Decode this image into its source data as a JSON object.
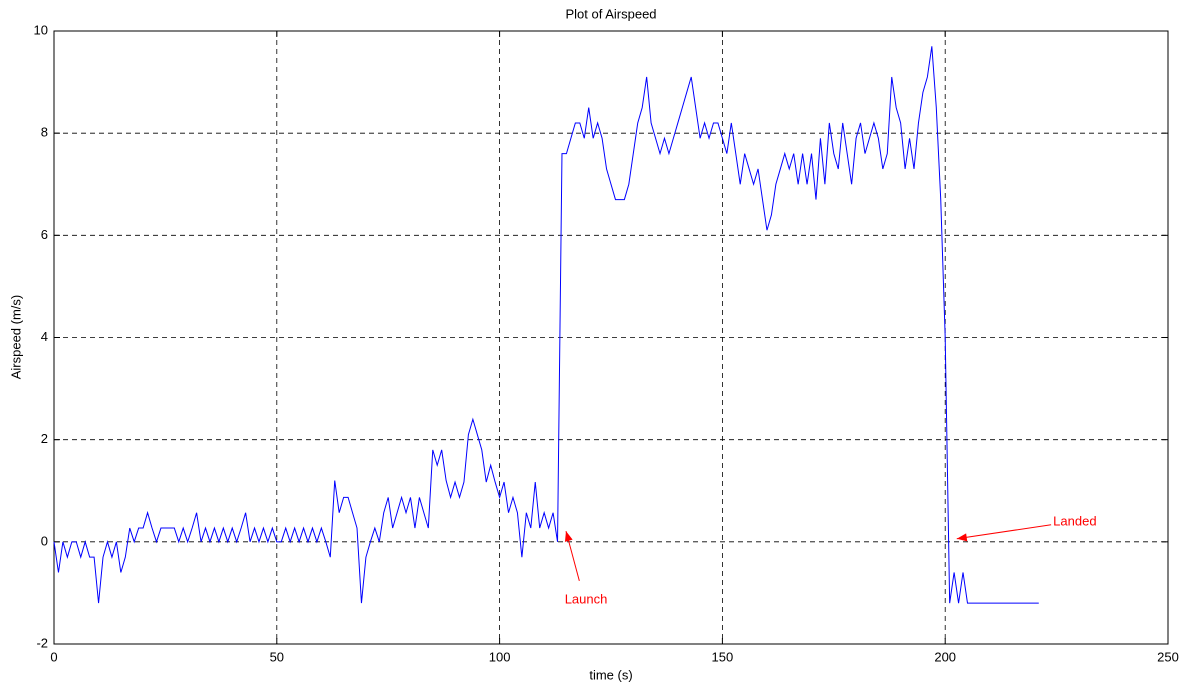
{
  "chart_data": {
    "type": "line",
    "title": "Plot of Airspeed",
    "x_label": "time (s)",
    "y_label": "Airspeed (m/s)",
    "x": [
      0,
      1,
      2,
      3,
      4,
      5,
      6,
      7,
      8,
      9,
      10,
      11,
      12,
      13,
      14,
      15,
      16,
      17,
      18,
      19,
      20,
      21,
      22,
      23,
      24,
      25,
      26,
      27,
      28,
      29,
      30,
      31,
      32,
      33,
      34,
      35,
      36,
      37,
      38,
      39,
      40,
      41,
      42,
      43,
      44,
      45,
      46,
      47,
      48,
      49,
      50,
      51,
      52,
      53,
      54,
      55,
      56,
      57,
      58,
      59,
      60,
      61,
      62,
      63,
      64,
      65,
      66,
      67,
      68,
      69,
      70,
      71,
      72,
      73,
      74,
      75,
      76,
      77,
      78,
      79,
      80,
      81,
      82,
      83,
      84,
      85,
      86,
      87,
      88,
      89,
      90,
      91,
      92,
      93,
      94,
      95,
      96,
      97,
      98,
      99,
      100,
      101,
      102,
      103,
      104,
      105,
      106,
      107,
      108,
      109,
      110,
      111,
      112,
      113,
      114,
      115,
      116,
      117,
      118,
      119,
      120,
      121,
      122,
      123,
      124,
      125,
      126,
      127,
      128,
      129,
      130,
      131,
      132,
      133,
      134,
      135,
      136,
      137,
      138,
      139,
      140,
      141,
      142,
      143,
      144,
      145,
      146,
      147,
      148,
      149,
      150,
      151,
      152,
      153,
      154,
      155,
      156,
      157,
      158,
      159,
      160,
      161,
      162,
      163,
      164,
      165,
      166,
      167,
      168,
      169,
      170,
      171,
      172,
      173,
      174,
      175,
      176,
      177,
      178,
      179,
      180,
      181,
      182,
      183,
      184,
      185,
      186,
      187,
      188,
      189,
      190,
      191,
      192,
      193,
      194,
      195,
      196,
      197,
      198,
      199,
      200,
      201,
      202,
      203,
      204,
      205,
      221
    ],
    "values": [
      0,
      -0.6,
      0,
      -0.3,
      0,
      0,
      -0.3,
      0,
      -0.3,
      -0.3,
      -1.2,
      -0.3,
      0,
      -0.3,
      0,
      -0.6,
      -0.3,
      0.27,
      0,
      0.27,
      0.27,
      0.57,
      0.27,
      0,
      0.27,
      0.27,
      0.27,
      0.27,
      0,
      0.27,
      0,
      0.27,
      0.57,
      0,
      0.27,
      0,
      0.27,
      0,
      0.27,
      0,
      0.27,
      0,
      0.27,
      0.57,
      0,
      0.27,
      0,
      0.27,
      0,
      0.27,
      0,
      0,
      0.27,
      0,
      0.27,
      0,
      0.27,
      0,
      0.27,
      0,
      0.27,
      0,
      -0.3,
      1.2,
      0.57,
      0.87,
      0.87,
      0.57,
      0.27,
      -1.2,
      -0.3,
      0,
      0.27,
      0,
      0.57,
      0.87,
      0.27,
      0.57,
      0.87,
      0.57,
      0.87,
      0.27,
      0.87,
      0.57,
      0.27,
      1.8,
      1.5,
      1.8,
      1.2,
      0.87,
      1.17,
      0.87,
      1.17,
      2.1,
      2.4,
      2.1,
      1.8,
      1.17,
      1.5,
      1.17,
      0.87,
      1.17,
      0.57,
      0.87,
      0.57,
      -0.3,
      0.57,
      0.27,
      1.17,
      0.27,
      0.57,
      0.27,
      0.57,
      0,
      7.6,
      7.6,
      7.9,
      8.2,
      8.2,
      7.9,
      8.5,
      7.9,
      8.2,
      7.9,
      7.3,
      7.0,
      6.7,
      6.7,
      6.7,
      7.0,
      7.6,
      8.2,
      8.5,
      9.1,
      8.2,
      7.9,
      7.6,
      7.9,
      7.6,
      7.9,
      8.2,
      8.5,
      8.8,
      9.1,
      8.5,
      7.9,
      8.2,
      7.9,
      8.2,
      8.2,
      7.9,
      7.6,
      8.2,
      7.6,
      7.0,
      7.6,
      7.3,
      7.0,
      7.3,
      6.7,
      6.1,
      6.4,
      7.0,
      7.3,
      7.6,
      7.3,
      7.6,
      7.0,
      7.6,
      7.0,
      7.6,
      6.7,
      7.9,
      7.0,
      8.2,
      7.6,
      7.3,
      8.2,
      7.6,
      7.0,
      7.9,
      8.2,
      7.6,
      7.9,
      8.2,
      7.9,
      7.3,
      7.6,
      9.1,
      8.5,
      8.2,
      7.3,
      7.9,
      7.3,
      8.2,
      8.8,
      9.1,
      9.7,
      8.5,
      6.7,
      4.0,
      -1.2,
      -0.6,
      -1.2,
      -0.6,
      -1.2,
      -1.2
    ],
    "color": "#0000ff",
    "xlim": [
      0,
      250
    ],
    "xticks": [
      0,
      50,
      100,
      150,
      200,
      250
    ],
    "ylim": [
      -2,
      10
    ],
    "yticks": [
      -2,
      0,
      2,
      4,
      6,
      8,
      10
    ],
    "grid": true,
    "annotations": [
      {
        "text": "Launch",
        "x": 119.4,
        "y": -1.14,
        "point": [
          114.9,
          0.21
        ],
        "color": "#ff0000"
      },
      {
        "text": "Landed",
        "x": 229.1,
        "y": 0.39,
        "point": [
          202.6,
          0.06
        ],
        "color": "#ff0000"
      }
    ]
  }
}
